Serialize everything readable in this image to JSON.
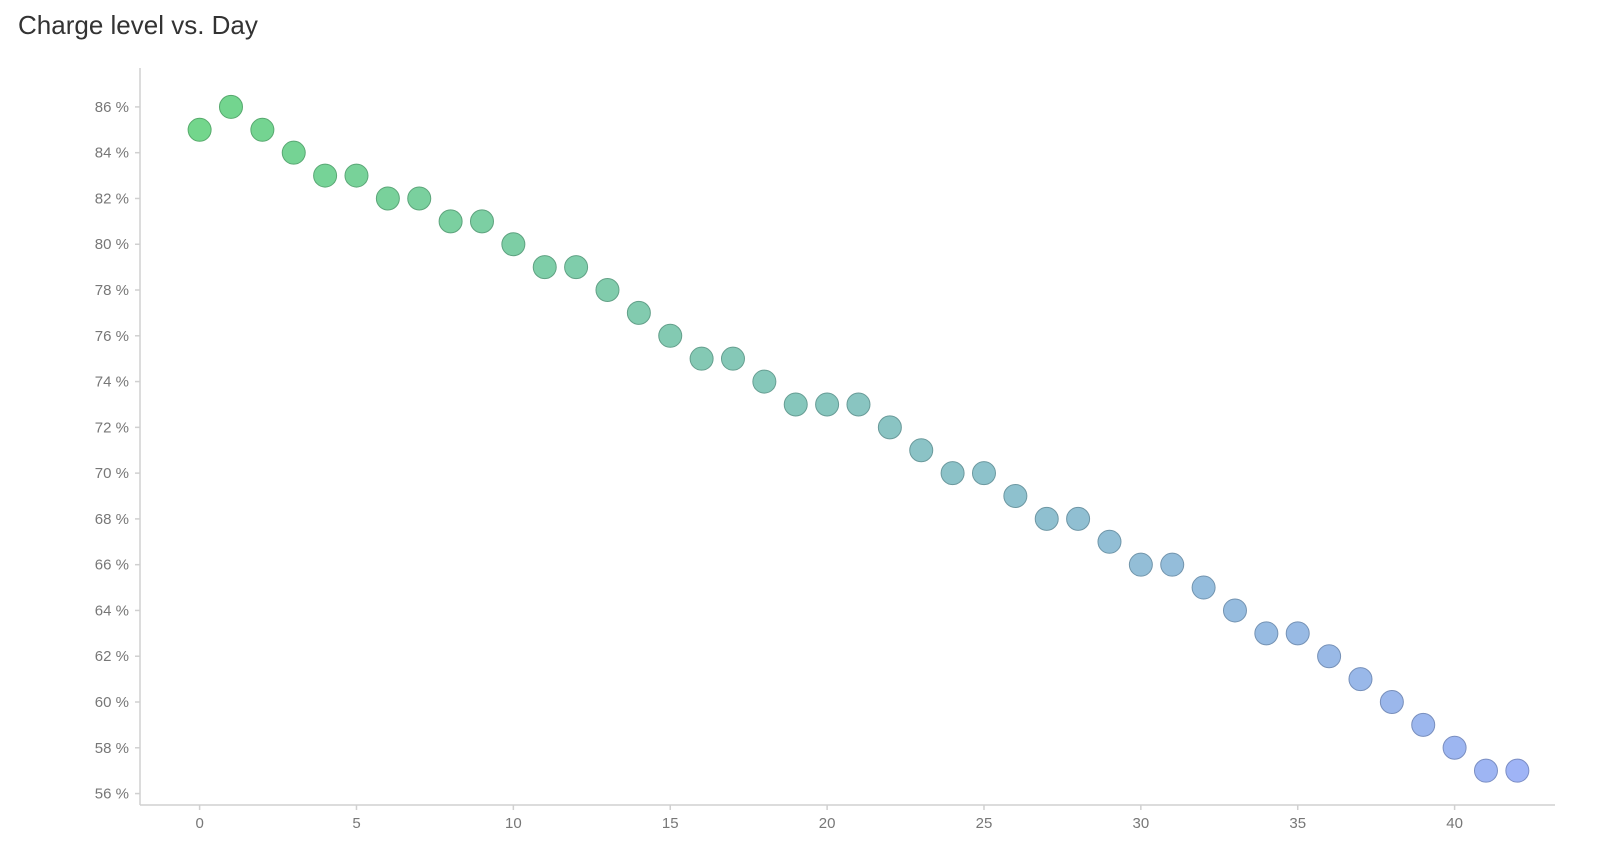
{
  "chart_data": {
    "type": "scatter",
    "title": "Charge level vs. Day",
    "xlabel": "",
    "ylabel": "",
    "x": [
      0,
      1,
      2,
      3,
      4,
      5,
      6,
      7,
      8,
      9,
      10,
      11,
      12,
      13,
      14,
      15,
      16,
      17,
      18,
      19,
      20,
      21,
      22,
      23,
      24,
      25,
      26,
      27,
      28,
      29,
      30,
      31,
      32,
      33,
      34,
      35,
      36,
      37,
      38,
      39,
      40,
      41,
      42
    ],
    "y": [
      85,
      86,
      85,
      84,
      83,
      83,
      82,
      82,
      81,
      81,
      80,
      79,
      79,
      78,
      77,
      76,
      75,
      75,
      74,
      73,
      73,
      73,
      72,
      71,
      70,
      70,
      69,
      68,
      68,
      67,
      66,
      66,
      65,
      64,
      63,
      63,
      62,
      61,
      60,
      59,
      58,
      57,
      57
    ],
    "xlim": [
      -1.9,
      43.2
    ],
    "ylim": [
      55.5,
      87.7
    ],
    "xticks": [
      0,
      5,
      10,
      15,
      20,
      25,
      30,
      35,
      40
    ],
    "yticks": [
      56,
      58,
      60,
      62,
      64,
      66,
      68,
      70,
      72,
      74,
      76,
      78,
      80,
      82,
      84,
      86
    ],
    "ytick_suffix": " %",
    "grid": false,
    "color_start": "#6bd486",
    "color_end": "#9ab0f5",
    "axis_color": "#d0d0d0"
  }
}
